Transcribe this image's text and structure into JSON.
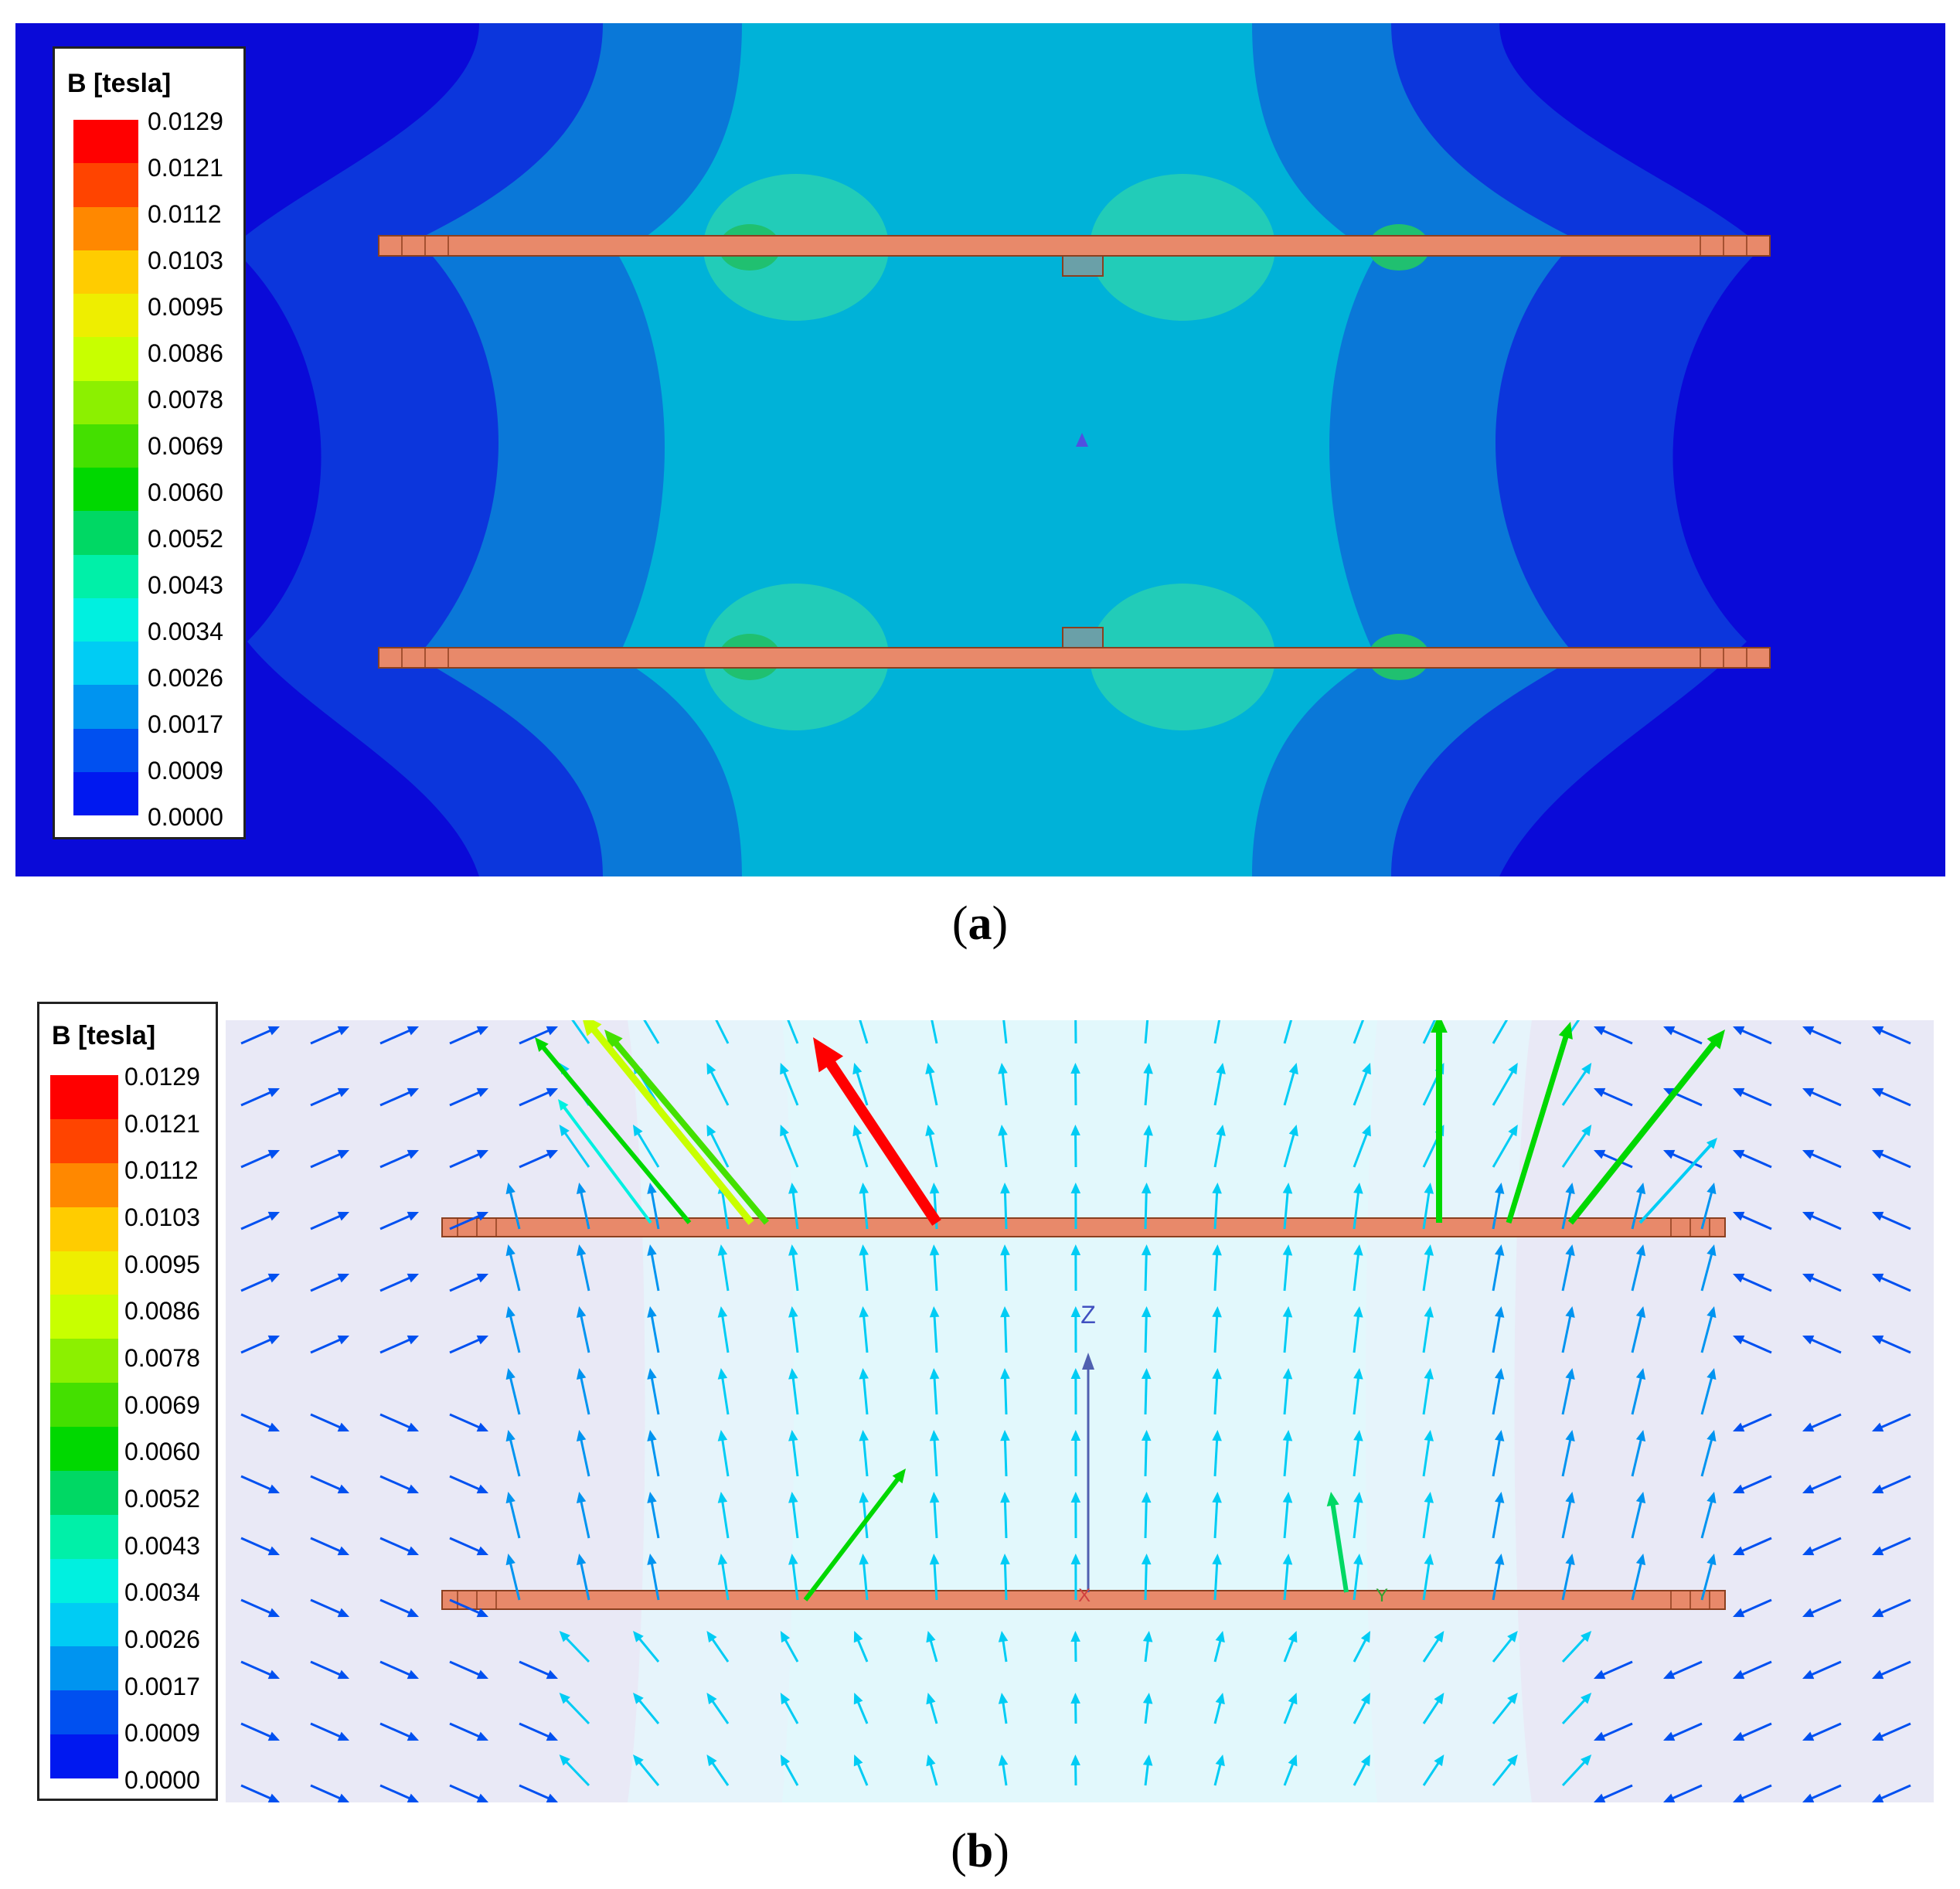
{
  "legend": {
    "title": "B [tesla]",
    "ticks": [
      "0.0129",
      "0.0121",
      "0.0112",
      "0.0103",
      "0.0095",
      "0.0086",
      "0.0078",
      "0.0069",
      "0.0060",
      "0.0052",
      "0.0043",
      "0.0034",
      "0.0026",
      "0.0017",
      "0.0009",
      "0.0000"
    ],
    "colors": [
      "#ff0000",
      "#ff4400",
      "#ff8800",
      "#ffcc00",
      "#eeee00",
      "#c8ff00",
      "#8cf000",
      "#44e000",
      "#00d800",
      "#00d864",
      "#00f0a8",
      "#00f0e0",
      "#00ccf4",
      "#0094f0",
      "#0050f0",
      "#0018f0"
    ]
  },
  "captions": {
    "a_open": "(",
    "a_letter": "a",
    "a_close": ")",
    "b_open": "(",
    "b_letter": "b",
    "b_close": ")"
  },
  "axis_labels": {
    "z": "Z",
    "x": "X",
    "y": "Y"
  },
  "colors": {
    "coil": "#e8896a",
    "panel_a_bg": "#0a0ad8",
    "panel_b_bg": "#e9e9f6"
  }
}
